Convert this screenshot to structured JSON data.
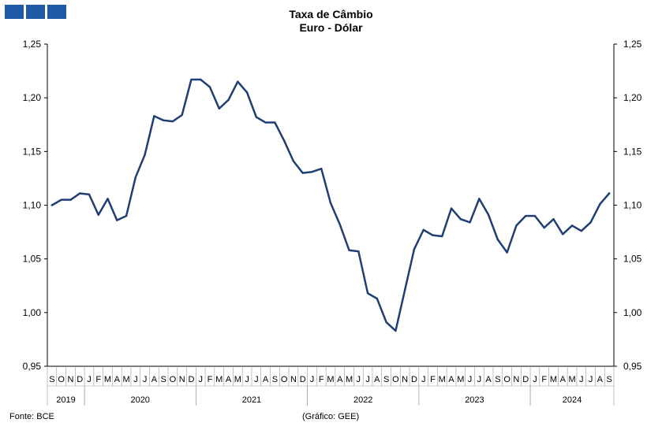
{
  "header": {
    "logo_color": "#1f5aa6",
    "title": "Taxa de Câmbio",
    "subtitle": "Euro - Dólar"
  },
  "footer": {
    "source": "Fonte: BCE",
    "credit": "(Gráfico: GEE)"
  },
  "chart_data": {
    "type": "line",
    "title": "Taxa de Câmbio",
    "subtitle": "Euro - Dólar",
    "ylim": [
      0.95,
      1.25
    ],
    "y_ticks": [
      "0,95",
      "1,00",
      "1,05",
      "1,10",
      "1,15",
      "1,20",
      "1,25"
    ],
    "y_axis_sides": [
      "left",
      "right"
    ],
    "grid": false,
    "line_color": "#1f3f74",
    "x": [
      "S",
      "O",
      "N",
      "D",
      "J",
      "F",
      "M",
      "A",
      "M",
      "J",
      "J",
      "A",
      "S",
      "O",
      "N",
      "D",
      "J",
      "F",
      "M",
      "A",
      "M",
      "J",
      "J",
      "A",
      "S",
      "O",
      "N",
      "D",
      "J",
      "F",
      "M",
      "A",
      "M",
      "J",
      "J",
      "A",
      "S",
      "O",
      "N",
      "D",
      "J",
      "F",
      "M",
      "A",
      "M",
      "J",
      "J",
      "A",
      "S",
      "O",
      "N",
      "D",
      "J",
      "F",
      "M",
      "A",
      "M",
      "J",
      "J",
      "A",
      "S"
    ],
    "year_groups": [
      {
        "label": "2019",
        "start": 0,
        "count": 4
      },
      {
        "label": "2020",
        "start": 4,
        "count": 12
      },
      {
        "label": "2021",
        "start": 16,
        "count": 12
      },
      {
        "label": "2022",
        "start": 28,
        "count": 12
      },
      {
        "label": "2023",
        "start": 40,
        "count": 12
      },
      {
        "label": "2024",
        "start": 52,
        "count": 9
      }
    ],
    "series": [
      {
        "values": [
          1.1,
          1.105,
          1.105,
          1.111,
          1.11,
          1.091,
          1.106,
          1.086,
          1.09,
          1.126,
          1.147,
          1.183,
          1.179,
          1.178,
          1.184,
          1.217,
          1.217,
          1.21,
          1.19,
          1.198,
          1.215,
          1.205,
          1.182,
          1.177,
          1.177,
          1.16,
          1.141,
          1.13,
          1.131,
          1.134,
          1.102,
          1.082,
          1.058,
          1.057,
          1.018,
          1.013,
          0.991,
          0.983,
          1.021,
          1.059,
          1.077,
          1.072,
          1.071,
          1.097,
          1.087,
          1.084,
          1.106,
          1.091,
          1.068,
          1.056,
          1.081,
          1.09,
          1.09,
          1.079,
          1.087,
          1.073,
          1.081,
          1.076,
          1.084,
          1.101,
          1.111
        ]
      }
    ]
  }
}
